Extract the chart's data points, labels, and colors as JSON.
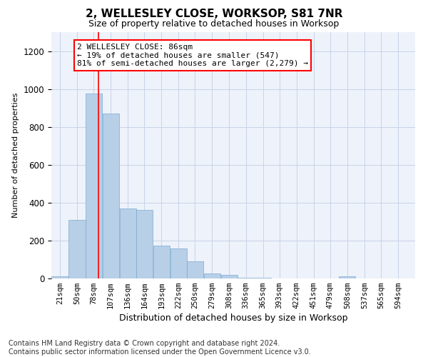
{
  "title": "2, WELLESLEY CLOSE, WORKSOP, S81 7NR",
  "subtitle": "Size of property relative to detached houses in Worksop",
  "xlabel": "Distribution of detached houses by size in Worksop",
  "ylabel": "Number of detached properties",
  "bar_color": "#b8cfe8",
  "bar_edge_color": "#7aaad0",
  "grid_color": "#c8d4e8",
  "background_color": "#eef2fa",
  "red_line_x": 86,
  "annotation_line1": "2 WELLESLEY CLOSE: 86sqm",
  "annotation_line2": "← 19% of detached houses are smaller (547)",
  "annotation_line3": "81% of semi-detached houses are larger (2,279) →",
  "bins": [
    21,
    50,
    78,
    107,
    136,
    164,
    193,
    222,
    250,
    279,
    308,
    336,
    365,
    393,
    422,
    451,
    479,
    508,
    537,
    565,
    594
  ],
  "values": [
    10,
    310,
    975,
    870,
    370,
    360,
    175,
    160,
    90,
    25,
    20,
    2,
    2,
    1,
    0,
    0,
    0,
    10,
    0,
    0,
    0
  ],
  "ylim": [
    0,
    1300
  ],
  "yticks": [
    0,
    200,
    400,
    600,
    800,
    1000,
    1200
  ],
  "footer": "Contains HM Land Registry data © Crown copyright and database right 2024.\nContains public sector information licensed under the Open Government Licence v3.0.",
  "footer_fontsize": 7.0,
  "title_fontsize": 11,
  "subtitle_fontsize": 9,
  "ylabel_fontsize": 8,
  "xlabel_fontsize": 9
}
